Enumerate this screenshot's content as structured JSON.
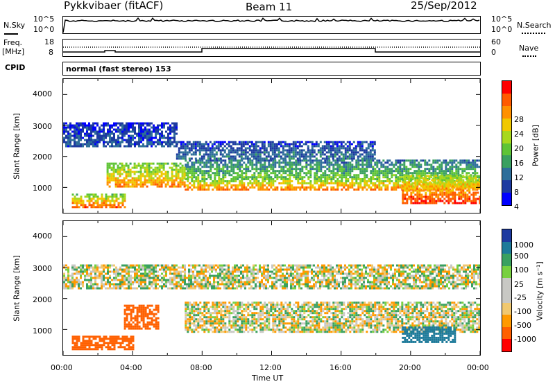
{
  "header": {
    "station": "Pykkvibaer (fitACF)",
    "beam": "Beam 11",
    "date": "25/Sep/2012"
  },
  "strips": {
    "nsky": {
      "label": "N.Sky",
      "ticks": [
        "10^5",
        "10^0"
      ]
    },
    "nsearch": {
      "label": "N.Search",
      "ticks": [
        "10^5",
        "10^0"
      ]
    },
    "freq": {
      "label_top": "Freq.",
      "label_unit": "[MHz]",
      "ticks": [
        "18",
        "8"
      ]
    },
    "nave": {
      "label": "Nave",
      "ticks": [
        "60",
        "0"
      ]
    },
    "cpid": {
      "label": "CPID",
      "value": "normal (fast stereo) 153"
    }
  },
  "panels": [
    {
      "ylabel": "Slant Range [km]",
      "yticks": [
        "4000",
        "3000",
        "2000",
        "1000"
      ]
    },
    {
      "ylabel": "Slant Range [km]",
      "yticks": [
        "4000",
        "3000",
        "2000",
        "1000"
      ]
    }
  ],
  "xaxis": {
    "label": "Time UT",
    "ticks": [
      "00:00",
      "04:00",
      "08:00",
      "12:00",
      "16:00",
      "20:00",
      "00:00"
    ]
  },
  "colorbars": {
    "power": {
      "label": "Power [dB]",
      "ticks": [
        "28",
        "24",
        "20",
        "16",
        "12",
        "8",
        "4"
      ]
    },
    "velocity": {
      "label": "Velocity [m s⁻¹]",
      "ticks": [
        "1000",
        "500",
        "100",
        "25",
        "-25",
        "-100",
        "-500",
        "-1000"
      ]
    }
  },
  "chart_data": [
    {
      "type": "heatmap",
      "title": "Power",
      "xlabel": "Time UT",
      "ylabel": "Slant Range [km]",
      "xlim": [
        0,
        24
      ],
      "ylim": [
        180,
        4500
      ],
      "colorbar_label": "Power [dB]",
      "colorbar_range": [
        0,
        30
      ],
      "colors": [
        "#0000ff",
        "#1d3aa0",
        "#2e6e9a",
        "#3aa060",
        "#5fc436",
        "#a8d81e",
        "#f0c800",
        "#ff9000",
        "#ff5a00",
        "#ff0000"
      ],
      "bands": [
        {
          "name": "main echo",
          "t_start": 7.0,
          "t_end": 24,
          "range_low_km": 900,
          "range_high_km": 1300,
          "peak_db": 26
        },
        {
          "name": "main echo upper",
          "t_start": 7.0,
          "t_end": 24,
          "range_low_km": 1300,
          "range_high_km": 1900,
          "peak_db": 14
        },
        {
          "name": "far band",
          "t_start": 6.5,
          "t_end": 18,
          "range_low_km": 1900,
          "range_high_km": 2500,
          "peak_db": 8
        },
        {
          "name": "arc",
          "t_start": 2.5,
          "t_end": 7.0,
          "range_low_km": 1000,
          "range_high_km": 1800,
          "peak_db": 24
        },
        {
          "name": "early near",
          "t_start": 0.5,
          "t_end": 3.5,
          "range_low_km": 350,
          "range_high_km": 800,
          "peak_db": 26
        },
        {
          "name": "early far",
          "t_start": 0.0,
          "t_end": 6.5,
          "range_low_km": 2300,
          "range_high_km": 3100,
          "peak_db": 6
        },
        {
          "name": "late near",
          "t_start": 19.5,
          "t_end": 24,
          "range_low_km": 500,
          "range_high_km": 1400,
          "peak_db": 28
        }
      ]
    },
    {
      "type": "heatmap",
      "title": "Velocity",
      "xlabel": "Time UT",
      "ylabel": "Slant Range [km]",
      "xlim": [
        0,
        24
      ],
      "ylim": [
        180,
        4500
      ],
      "colorbar_label": "Velocity [m s⁻¹]",
      "colorbar_range": [
        -1000,
        1000
      ],
      "colors": [
        "#ff0000",
        "#ff6000",
        "#ff9a00",
        "#f0c870",
        "#c8c8c4",
        "#c8c8c4",
        "#78d040",
        "#3aa060",
        "#1d7a9a",
        "#1d3aa0"
      ],
      "bands": [
        {
          "name": "main echo",
          "t_start": 7.0,
          "t_end": 24,
          "range_low_km": 900,
          "range_high_km": 1900,
          "velocity": 0
        },
        {
          "name": "far band",
          "t_start": 0.0,
          "t_end": 24,
          "range_low_km": 2300,
          "range_high_km": 3100,
          "velocity": 0
        },
        {
          "name": "arc",
          "t_start": 3.5,
          "t_end": 5.5,
          "range_low_km": 1000,
          "range_high_km": 1800,
          "velocity": -300
        },
        {
          "name": "early near",
          "t_start": 0.5,
          "t_end": 4.0,
          "range_low_km": 350,
          "range_high_km": 800,
          "velocity": -200
        },
        {
          "name": "late patch",
          "t_start": 19.5,
          "t_end": 22.5,
          "range_low_km": 600,
          "range_high_km": 1100,
          "velocity": 300
        }
      ]
    }
  ]
}
